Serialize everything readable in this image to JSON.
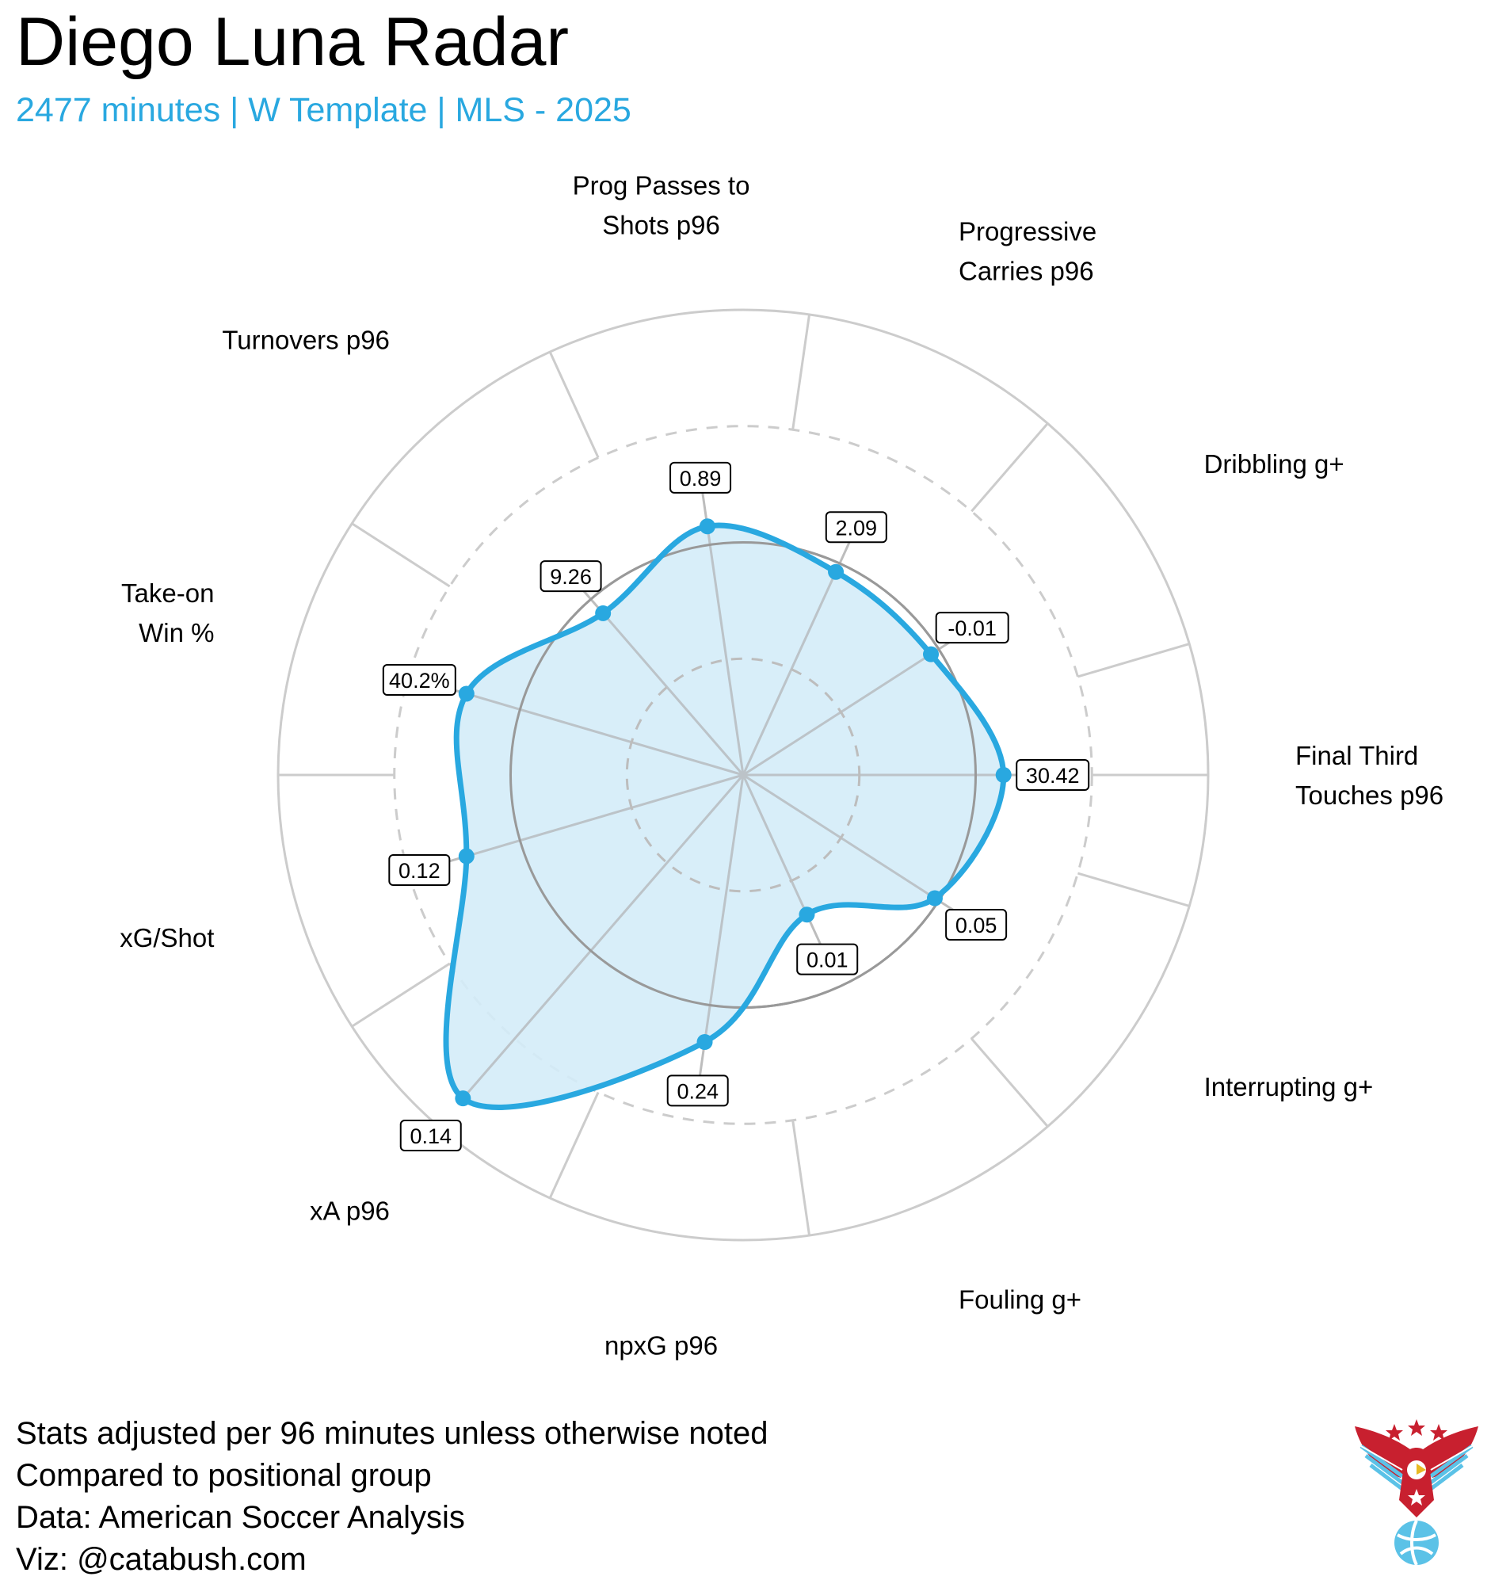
{
  "title": "Diego Luna Radar",
  "subtitle": "2477 minutes | W Template | MLS - 2025",
  "footer": {
    "lines": [
      "Stats adjusted per 96 minutes unless otherwise noted",
      "Compared to positional group",
      "Data: American Soccer Analysis",
      "Viz: @catabush.com"
    ]
  },
  "colors": {
    "accent": "#29a8e0",
    "fill": "#d4ecf8",
    "grid": "#cccccc",
    "mid_ring": "#999999"
  },
  "logo": {
    "icon": "eagle-soccer-logo-icon"
  },
  "chart_data": {
    "type": "radar",
    "title": "Diego Luna Radar",
    "scale": "percentile",
    "rlim": [
      0,
      100
    ],
    "rings": [
      25,
      50,
      75,
      100
    ],
    "axes": [
      {
        "label": [
          "Final Third",
          "Touches p96"
        ],
        "value_label": "30.42",
        "percentile": 56
      },
      {
        "label": [
          "Dribbling g+"
        ],
        "value_label": "-0.01",
        "percentile": 48
      },
      {
        "label": [
          "Progressive",
          "Carries p96"
        ],
        "value_label": "2.09",
        "percentile": 48
      },
      {
        "label": [
          "Prog Passes to",
          "Shots p96"
        ],
        "value_label": "0.89",
        "percentile": 54
      },
      {
        "label": [
          "Turnovers p96"
        ],
        "value_label": "9.26",
        "percentile": 46
      },
      {
        "label": [
          "Take-on",
          "Win %"
        ],
        "value_label": "40.2%",
        "percentile": 62
      },
      {
        "label": [
          "xG/Shot"
        ],
        "value_label": "0.12",
        "percentile": 62
      },
      {
        "label": [
          "xA p96"
        ],
        "value_label": "0.14",
        "percentile": 92
      },
      {
        "label": [
          "npxG p96"
        ],
        "value_label": "0.24",
        "percentile": 58
      },
      {
        "label": [
          "Fouling g+"
        ],
        "value_label": "0.01",
        "percentile": 33
      },
      {
        "label": [
          "Interrupting g+"
        ],
        "value_label": "0.05",
        "percentile": 49
      }
    ]
  }
}
